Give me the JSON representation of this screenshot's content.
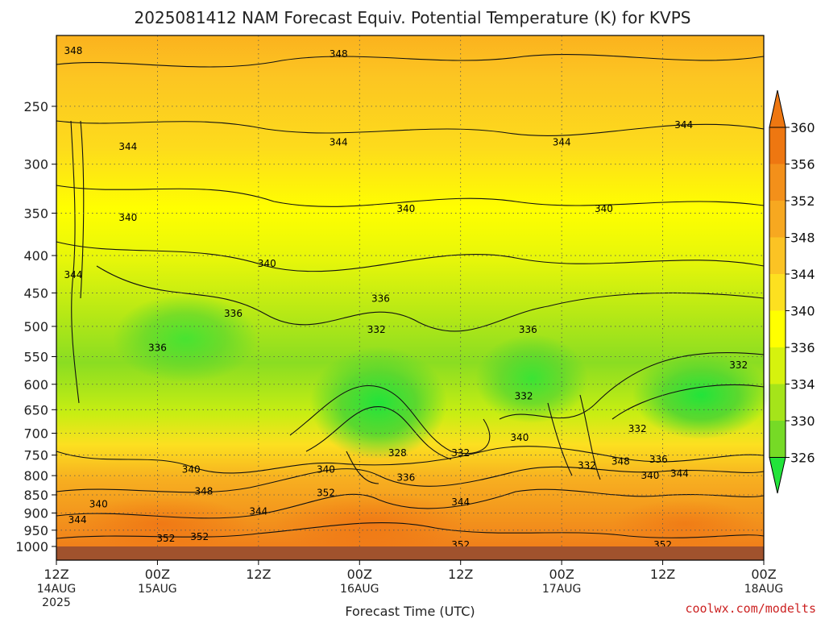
{
  "chart_data": {
    "type": "heatmap",
    "title": "2025081412 NAM Forecast Equiv. Potential Temperature (K) for KVPS",
    "xlabel": "Forecast Time (UTC)",
    "ylabel": "",
    "y_scale": "log",
    "y_reversed": true,
    "ylim": [
      1000,
      200
    ],
    "y_ticks": [
      250,
      300,
      350,
      400,
      450,
      500,
      550,
      600,
      650,
      700,
      750,
      800,
      850,
      900,
      950,
      1000
    ],
    "x_ticks": [
      {
        "hour": 0,
        "line1": "12Z",
        "line2": "14AUG",
        "line3": "2025"
      },
      {
        "hour": 12,
        "line1": "00Z",
        "line2": "15AUG",
        "line3": ""
      },
      {
        "hour": 24,
        "line1": "12Z",
        "line2": "",
        "line3": ""
      },
      {
        "hour": 36,
        "line1": "00Z",
        "line2": "16AUG",
        "line3": ""
      },
      {
        "hour": 48,
        "line1": "12Z",
        "line2": "",
        "line3": ""
      },
      {
        "hour": 60,
        "line1": "00Z",
        "line2": "17AUG",
        "line3": ""
      },
      {
        "hour": 72,
        "line1": "12Z",
        "line2": "",
        "line3": ""
      },
      {
        "hour": 84,
        "line1": "00Z",
        "line2": "18AUG",
        "line3": ""
      }
    ],
    "x_range_hours": [
      0,
      84
    ],
    "colorbar": {
      "ticks": [
        360,
        356,
        352,
        348,
        344,
        340,
        336,
        334,
        330,
        326
      ],
      "colors": [
        "#ee7711",
        "#f3901a",
        "#f7a820",
        "#fbc324",
        "#fde020",
        "#ffff00",
        "#d6f20e",
        "#a5e41a",
        "#76da26",
        "#22e43a"
      ]
    },
    "grid": true,
    "contour_labels": [
      {
        "hour": 2.0,
        "p": 210,
        "text": "348"
      },
      {
        "hour": 33.5,
        "p": 212,
        "text": "348"
      },
      {
        "hour": 8.5,
        "p": 284,
        "text": "344"
      },
      {
        "hour": 33.5,
        "p": 280,
        "text": "344"
      },
      {
        "hour": 60.0,
        "p": 280,
        "text": "344"
      },
      {
        "hour": 74.5,
        "p": 265,
        "text": "344"
      },
      {
        "hour": 8.5,
        "p": 355,
        "text": "340"
      },
      {
        "hour": 41.5,
        "p": 345,
        "text": "340"
      },
      {
        "hour": 65.0,
        "p": 345,
        "text": "340"
      },
      {
        "hour": 25.0,
        "p": 410,
        "text": "340"
      },
      {
        "hour": 2.0,
        "p": 425,
        "text": "344"
      },
      {
        "hour": 21.0,
        "p": 480,
        "text": "336"
      },
      {
        "hour": 38.5,
        "p": 458,
        "text": "336"
      },
      {
        "hour": 38.0,
        "p": 505,
        "text": "332"
      },
      {
        "hour": 56.0,
        "p": 505,
        "text": "336"
      },
      {
        "hour": 12.0,
        "p": 535,
        "text": "336"
      },
      {
        "hour": 81.0,
        "p": 565,
        "text": "332"
      },
      {
        "hour": 55.5,
        "p": 623,
        "text": "332"
      },
      {
        "hour": 69.0,
        "p": 690,
        "text": "332"
      },
      {
        "hour": 55.0,
        "p": 710,
        "text": "340"
      },
      {
        "hour": 40.5,
        "p": 745,
        "text": "328"
      },
      {
        "hour": 48.0,
        "p": 745,
        "text": "332"
      },
      {
        "hour": 71.5,
        "p": 760,
        "text": "336"
      },
      {
        "hour": 32.0,
        "p": 785,
        "text": "340"
      },
      {
        "hour": 63.0,
        "p": 775,
        "text": "332"
      },
      {
        "hour": 67.0,
        "p": 765,
        "text": "348"
      },
      {
        "hour": 16.0,
        "p": 785,
        "text": "340"
      },
      {
        "hour": 41.5,
        "p": 805,
        "text": "336"
      },
      {
        "hour": 70.5,
        "p": 800,
        "text": "340"
      },
      {
        "hour": 74.0,
        "p": 795,
        "text": "344"
      },
      {
        "hour": 17.5,
        "p": 840,
        "text": "348"
      },
      {
        "hour": 32.0,
        "p": 845,
        "text": "352"
      },
      {
        "hour": 5.0,
        "p": 875,
        "text": "340"
      },
      {
        "hour": 24.0,
        "p": 895,
        "text": "344"
      },
      {
        "hour": 48.0,
        "p": 870,
        "text": "344"
      },
      {
        "hour": 2.5,
        "p": 920,
        "text": "344"
      },
      {
        "hour": 13.0,
        "p": 975,
        "text": "352"
      },
      {
        "hour": 17.0,
        "p": 970,
        "text": "352"
      },
      {
        "hour": 48.0,
        "p": 995,
        "text": "352"
      },
      {
        "hour": 72.0,
        "p": 995,
        "text": "352"
      }
    ]
  },
  "credit": "coolwx.com/modelts"
}
